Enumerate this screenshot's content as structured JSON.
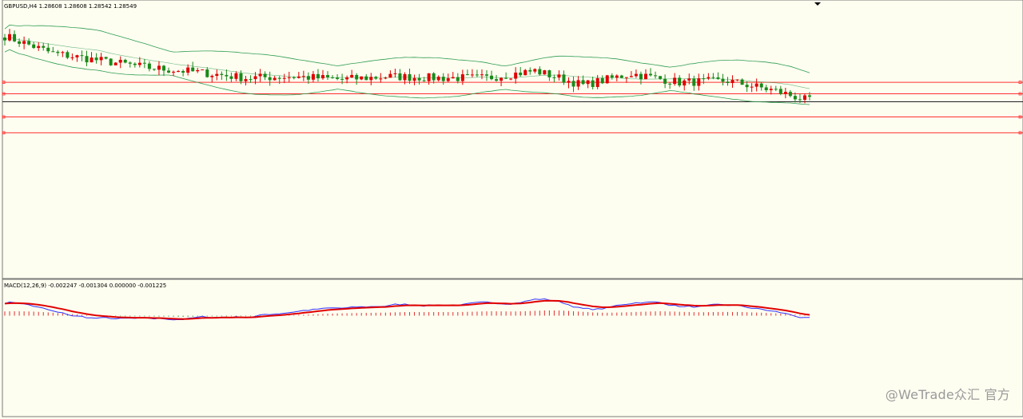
{
  "chart_data": {
    "type": "candlestick",
    "symbol_header": "GBPUSD,H4  1.28608 1.28608 1.28542 1.28549",
    "macd_header": "MACD(12,26,9) -0.002247 -0.001304 0.000000 -0.001225",
    "price_panel": {
      "ylim": [
        1.2846,
        1.3039
      ],
      "horizontal_lines": [
        {
          "name": "level-1",
          "value": 1.2982,
          "color": "#ff3030"
        },
        {
          "name": "level-2",
          "value": 1.2974,
          "color": "#ff3030"
        },
        {
          "name": "current-price",
          "value": 1.29685,
          "color": "#202020"
        },
        {
          "name": "level-3",
          "value": 1.2958,
          "color": "#ff3030"
        },
        {
          "name": "level-4",
          "value": 1.2947,
          "color": "#ff3030"
        }
      ],
      "bars": 168,
      "candles_approx": [
        [
          0,
          1.3022,
          1.3014
        ],
        [
          10,
          1.3016,
          1.3002
        ],
        [
          20,
          1.2999,
          1.2997
        ],
        [
          30,
          1.2993,
          1.2992
        ],
        [
          40,
          1.299,
          1.2989
        ],
        [
          50,
          1.2987,
          1.2985
        ],
        [
          60,
          1.2987,
          1.2986
        ],
        [
          70,
          1.2985,
          1.2984
        ],
        [
          80,
          1.2986,
          1.2986
        ],
        [
          90,
          1.2987,
          1.2985
        ],
        [
          100,
          1.2986,
          1.2985
        ],
        [
          110,
          1.299,
          1.299
        ],
        [
          120,
          1.2983,
          1.298
        ],
        [
          130,
          1.299,
          1.2988
        ],
        [
          140,
          1.2982,
          1.2982
        ],
        [
          150,
          1.298,
          1.2983
        ],
        [
          160,
          1.298,
          1.2976
        ],
        [
          167,
          1.2969,
          1.2969
        ]
      ],
      "bollinger_bands": {
        "upper_start": 1.3025,
        "upper_end": 1.299,
        "middle_start": 1.3015,
        "middle_end": 1.2978,
        "lower_start": 1.3005,
        "lower_end": 1.2966
      }
    },
    "macd_panel": {
      "ylim": [
        -0.005,
        0.0018
      ],
      "zero_line": 0.0,
      "series": [
        {
          "name": "MACD",
          "color": "#3030ff"
        },
        {
          "name": "Signal",
          "color": "#e00000"
        }
      ],
      "histogram_colors": {
        "up": "#e03030",
        "down": "#2a8a2a"
      }
    },
    "colors": {
      "background": "#fdfdf0",
      "bull": "#e00000",
      "bear": "#1a8a1a",
      "band": "#2e9e52"
    }
  },
  "watermark": {
    "text": "@WeTrade众汇 官方"
  }
}
